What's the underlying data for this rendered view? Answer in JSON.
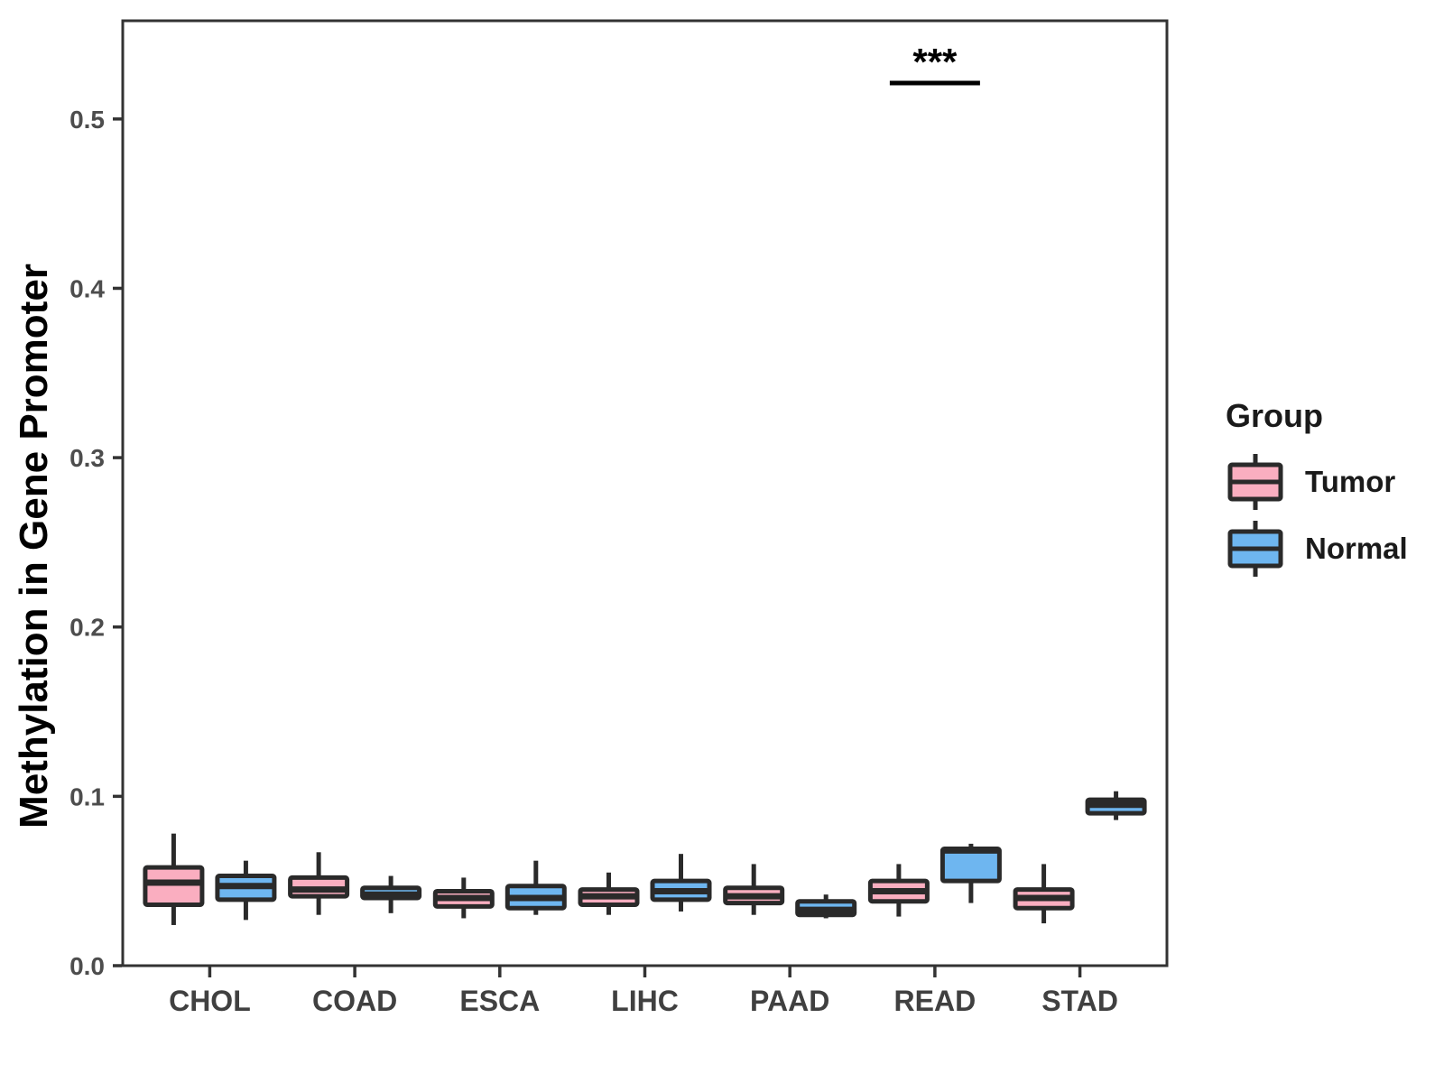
{
  "y_axis": {
    "title": "Methylation in Gene Promoter",
    "tick_labels": [
      "0.0",
      "0.1",
      "0.2",
      "0.3",
      "0.4",
      "0.5"
    ]
  },
  "x_axis": {
    "tick_labels": [
      "CHOL",
      "COAD",
      "ESCA",
      "LIHC",
      "PAAD",
      "READ",
      "STAD"
    ]
  },
  "legend": {
    "title": "Group",
    "items": [
      {
        "label": "Tumor",
        "color": "#FAAEC0"
      },
      {
        "label": "Normal",
        "color": "#6EB6F0"
      }
    ]
  },
  "colors": {
    "tumor_fill": "#FAAEC0",
    "normal_fill": "#6EB6F0",
    "box_stroke": "#2A2A2A",
    "panel_border": "#333333",
    "tick_mark": "#333333",
    "y_tick_label": "#4D4D4D",
    "x_tick_label": "#404040",
    "axis_title": "#000000",
    "annotation": "#000000"
  },
  "chart_data": {
    "type": "boxplot",
    "title": "",
    "xlabel": "",
    "ylabel": "Methylation in Gene Promoter",
    "ylim": [
      0,
      0.558
    ],
    "y_ticks": [
      0.0,
      0.1,
      0.2,
      0.3,
      0.4,
      0.5
    ],
    "grid": false,
    "legend_position": "right",
    "categories": [
      "CHOL",
      "COAD",
      "ESCA",
      "LIHC",
      "PAAD",
      "READ",
      "STAD"
    ],
    "series": [
      {
        "name": "Tumor",
        "fill": "#FAAEC0",
        "boxes": [
          {
            "category": "CHOL",
            "whisker_low": 0.024,
            "q1": 0.036,
            "median": 0.049,
            "q3": 0.058,
            "whisker_high": 0.078
          },
          {
            "category": "COAD",
            "whisker_low": 0.03,
            "q1": 0.041,
            "median": 0.045,
            "q3": 0.052,
            "whisker_high": 0.067
          },
          {
            "category": "ESCA",
            "whisker_low": 0.028,
            "q1": 0.035,
            "median": 0.04,
            "q3": 0.044,
            "whisker_high": 0.052
          },
          {
            "category": "LIHC",
            "whisker_low": 0.03,
            "q1": 0.036,
            "median": 0.041,
            "q3": 0.045,
            "whisker_high": 0.055
          },
          {
            "category": "PAAD",
            "whisker_low": 0.03,
            "q1": 0.037,
            "median": 0.041,
            "q3": 0.046,
            "whisker_high": 0.06
          },
          {
            "category": "READ",
            "whisker_low": 0.029,
            "q1": 0.038,
            "median": 0.044,
            "q3": 0.05,
            "whisker_high": 0.06
          },
          {
            "category": "STAD",
            "whisker_low": 0.025,
            "q1": 0.034,
            "median": 0.04,
            "q3": 0.045,
            "whisker_high": 0.06
          }
        ]
      },
      {
        "name": "Normal",
        "fill": "#6EB6F0",
        "boxes": [
          {
            "category": "CHOL",
            "whisker_low": 0.027,
            "q1": 0.039,
            "median": 0.047,
            "q3": 0.053,
            "whisker_high": 0.062
          },
          {
            "category": "COAD",
            "whisker_low": 0.031,
            "q1": 0.04,
            "median": 0.042,
            "q3": 0.046,
            "whisker_high": 0.053
          },
          {
            "category": "ESCA",
            "whisker_low": 0.03,
            "q1": 0.034,
            "median": 0.04,
            "q3": 0.047,
            "whisker_high": 0.062
          },
          {
            "category": "LIHC",
            "whisker_low": 0.032,
            "q1": 0.039,
            "median": 0.044,
            "q3": 0.05,
            "whisker_high": 0.066
          },
          {
            "category": "PAAD",
            "whisker_low": 0.028,
            "q1": 0.03,
            "median": 0.033,
            "q3": 0.038,
            "whisker_high": 0.042
          },
          {
            "category": "READ",
            "whisker_low": 0.037,
            "q1": 0.05,
            "median": 0.068,
            "q3": 0.069,
            "whisker_high": 0.072
          },
          {
            "category": "STAD",
            "whisker_low": 0.086,
            "q1": 0.09,
            "median": 0.095,
            "q3": 0.098,
            "whisker_high": 0.103
          }
        ]
      }
    ],
    "annotations": [
      {
        "type": "significance",
        "category": "READ",
        "label": "***"
      }
    ]
  }
}
